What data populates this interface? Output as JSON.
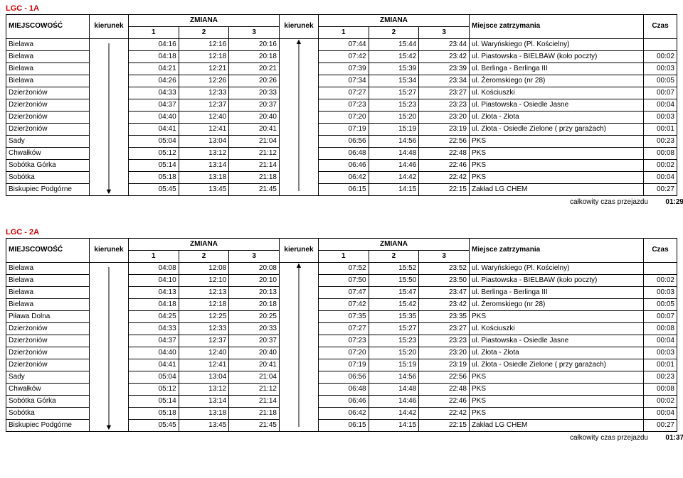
{
  "labels": {
    "miejscowosc": "MIEJSCOWOŚĆ",
    "kierunek": "kierunek",
    "zmiana": "ZMIANA",
    "stop": "Miejsce zatrzymania",
    "czas": "Czas",
    "footer": "całkowity czas przejazdu"
  },
  "tables": [
    {
      "code": "LGC - 1A",
      "footer_time": "01:29",
      "kierL": "down",
      "kierR": "up",
      "rows": [
        {
          "m": "Bielawa",
          "l": [
            "04:16",
            "12:16",
            "20:16"
          ],
          "r": [
            "07:44",
            "15:44",
            "23:44"
          ],
          "s": "ul. Waryńskiego (Pl. Kościelny)",
          "c": ""
        },
        {
          "m": "Bielawa",
          "l": [
            "04:18",
            "12:18",
            "20:18"
          ],
          "r": [
            "07:42",
            "15:42",
            "23:42"
          ],
          "s": "ul. Piastowska - BIELBAW (koło poczty)",
          "c": "00:02"
        },
        {
          "m": "Bielawa",
          "l": [
            "04:21",
            "12:21",
            "20:21"
          ],
          "r": [
            "07:39",
            "15:39",
            "23:39"
          ],
          "s": "ul. Berlinga - Berlinga III",
          "c": "00:03"
        },
        {
          "m": "Bielawa",
          "l": [
            "04:26",
            "12:26",
            "20:26"
          ],
          "r": [
            "07:34",
            "15:34",
            "23:34"
          ],
          "s": "ul. Żeromskiego (nr 28)",
          "c": "00:05"
        },
        {
          "m": "Dzierżoniów",
          "l": [
            "04:33",
            "12:33",
            "20:33"
          ],
          "r": [
            "07:27",
            "15:27",
            "23:27"
          ],
          "s": "ul. Kościuszki",
          "c": "00:07"
        },
        {
          "m": "Dzierżoniów",
          "l": [
            "04:37",
            "12:37",
            "20:37"
          ],
          "r": [
            "07:23",
            "15:23",
            "23:23"
          ],
          "s": "ul. Piastowska - Osiedle Jasne",
          "c": "00:04"
        },
        {
          "m": "Dzierżoniów",
          "l": [
            "04:40",
            "12:40",
            "20:40"
          ],
          "r": [
            "07:20",
            "15:20",
            "23:20"
          ],
          "s": "ul. Złota - Złota",
          "c": "00:03"
        },
        {
          "m": "Dzierżoniów",
          "l": [
            "04:41",
            "12:41",
            "20:41"
          ],
          "r": [
            "07:19",
            "15:19",
            "23:19"
          ],
          "s": "ul. Złota - Osiedle Zielone ( przy garażach)",
          "c": "00:01"
        },
        {
          "m": "Sady",
          "l": [
            "05:04",
            "13:04",
            "21:04"
          ],
          "r": [
            "06:56",
            "14:56",
            "22:56"
          ],
          "s": "PKS",
          "c": "00:23"
        },
        {
          "m": "Chwałków",
          "l": [
            "05:12",
            "13:12",
            "21:12"
          ],
          "r": [
            "06:48",
            "14:48",
            "22:48"
          ],
          "s": "PKS",
          "c": "00:08"
        },
        {
          "m": "Sobótka Górka",
          "l": [
            "05:14",
            "13:14",
            "21:14"
          ],
          "r": [
            "06:46",
            "14:46",
            "22:46"
          ],
          "s": "PKS",
          "c": "00:02"
        },
        {
          "m": "Sobótka",
          "l": [
            "05:18",
            "13:18",
            "21:18"
          ],
          "r": [
            "06:42",
            "14:42",
            "22:42"
          ],
          "s": "PKS",
          "c": "00:04"
        },
        {
          "m": "Biskupiec Podgórne",
          "l": [
            "05:45",
            "13:45",
            "21:45"
          ],
          "r": [
            "06:15",
            "14:15",
            "22:15"
          ],
          "s": "Zakład LG CHEM",
          "c": "00:27"
        }
      ]
    },
    {
      "code": "LGC - 2A",
      "footer_time": "01:37",
      "kierL": "down",
      "kierR": "up",
      "rows": [
        {
          "m": "Bielawa",
          "l": [
            "04:08",
            "12:08",
            "20:08"
          ],
          "r": [
            "07:52",
            "15:52",
            "23:52"
          ],
          "s": "ul. Waryńskiego (Pl. Kościelny)",
          "c": ""
        },
        {
          "m": "Bielawa",
          "l": [
            "04:10",
            "12:10",
            "20:10"
          ],
          "r": [
            "07:50",
            "15:50",
            "23:50"
          ],
          "s": "ul. Piastowska - BIELBAW (koło poczty)",
          "c": "00:02"
        },
        {
          "m": "Bielawa",
          "l": [
            "04:13",
            "12:13",
            "20:13"
          ],
          "r": [
            "07:47",
            "15:47",
            "23:47"
          ],
          "s": "ul. Berlinga - Berlinga III",
          "c": "00:03"
        },
        {
          "m": "Bielawa",
          "l": [
            "04:18",
            "12:18",
            "20:18"
          ],
          "r": [
            "07:42",
            "15:42",
            "23:42"
          ],
          "s": "ul. Żeromskiego (nr 28)",
          "c": "00:05"
        },
        {
          "m": "Piława Dolna",
          "l": [
            "04:25",
            "12:25",
            "20:25"
          ],
          "r": [
            "07:35",
            "15:35",
            "23:35"
          ],
          "s": "PKS",
          "c": "00:07"
        },
        {
          "m": "Dzierżoniów",
          "l": [
            "04:33",
            "12:33",
            "20:33"
          ],
          "r": [
            "07:27",
            "15:27",
            "23:27"
          ],
          "s": "ul. Kościuszki",
          "c": "00:08"
        },
        {
          "m": "Dzierżoniów",
          "l": [
            "04:37",
            "12:37",
            "20:37"
          ],
          "r": [
            "07:23",
            "15:23",
            "23:23"
          ],
          "s": "ul. Piastowska - Osiedle Jasne",
          "c": "00:04"
        },
        {
          "m": "Dzierżoniów",
          "l": [
            "04:40",
            "12:40",
            "20:40"
          ],
          "r": [
            "07:20",
            "15:20",
            "23:20"
          ],
          "s": "ul. Złota - Złota",
          "c": "00:03"
        },
        {
          "m": "Dzierżoniów",
          "l": [
            "04:41",
            "12:41",
            "20:41"
          ],
          "r": [
            "07:19",
            "15:19",
            "23:19"
          ],
          "s": "ul. Złota - Osiedle Zielone ( przy garażach)",
          "c": "00:01"
        },
        {
          "m": "Sady",
          "l": [
            "05:04",
            "13:04",
            "21:04"
          ],
          "r": [
            "06:56",
            "14:56",
            "22:56"
          ],
          "s": "PKS",
          "c": "00:23"
        },
        {
          "m": "Chwałków",
          "l": [
            "05:12",
            "13:12",
            "21:12"
          ],
          "r": [
            "06:48",
            "14:48",
            "22:48"
          ],
          "s": "PKS",
          "c": "00:08"
        },
        {
          "m": "Sobótka Górka",
          "l": [
            "05:14",
            "13:14",
            "21:14"
          ],
          "r": [
            "06:46",
            "14:46",
            "22:46"
          ],
          "s": "PKS",
          "c": "00:02"
        },
        {
          "m": "Sobótka",
          "l": [
            "05:18",
            "13:18",
            "21:18"
          ],
          "r": [
            "06:42",
            "14:42",
            "22:42"
          ],
          "s": "PKS",
          "c": "00:04"
        },
        {
          "m": "Biskupiec Podgórne",
          "l": [
            "05:45",
            "13:45",
            "21:45"
          ],
          "r": [
            "06:15",
            "14:15",
            "22:15"
          ],
          "s": "Zakład LG CHEM",
          "c": "00:27"
        }
      ]
    }
  ]
}
